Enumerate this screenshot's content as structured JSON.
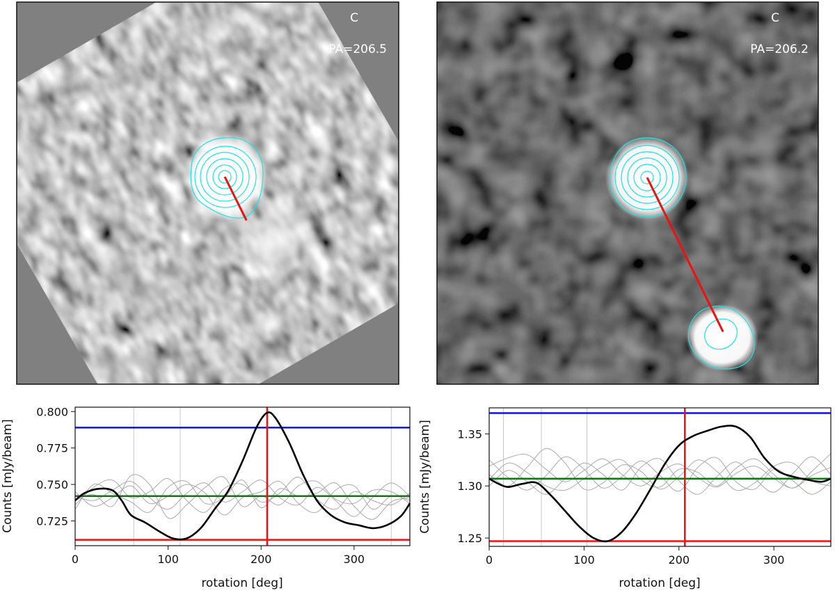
{
  "chart_data": [
    {
      "type": "image",
      "id": "img-left",
      "panel_letter": "C",
      "pa_label": "PA=206.5",
      "position_angle_deg": 206.5
    },
    {
      "type": "image",
      "id": "img-right",
      "panel_letter": "C",
      "pa_label": "PA=206.2",
      "position_angle_deg": 206.2
    },
    {
      "type": "line",
      "id": "profile-left",
      "xlabel": "rotation [deg]",
      "ylabel": "Counts [mJy/beam]",
      "xlim": [
        0,
        360
      ],
      "ylim": [
        0.708,
        0.803
      ],
      "xticks": [
        0,
        100,
        200,
        300
      ],
      "xtick_labels": [
        "0",
        "100",
        "200",
        "300"
      ],
      "yticks": [
        0.725,
        0.75,
        0.775,
        0.8
      ],
      "ytick_labels": [
        "0.725",
        "0.750",
        "0.775",
        "0.800"
      ],
      "vlines_gray": [
        63,
        113,
        340
      ],
      "hline_blue": 0.789,
      "hline_green": 0.742,
      "hline_red": 0.712,
      "vline_red": 206.5,
      "series": [
        {
          "name": "profile",
          "color": "#000000",
          "x": [
            0,
            10,
            25,
            40,
            50,
            60,
            75,
            90,
            105,
            120,
            135,
            150,
            165,
            180,
            195,
            206,
            215,
            230,
            245,
            260,
            275,
            290,
            305,
            320,
            335,
            350,
            360
          ],
          "y": [
            0.739,
            0.744,
            0.747,
            0.746,
            0.739,
            0.729,
            0.724,
            0.718,
            0.713,
            0.713,
            0.72,
            0.733,
            0.746,
            0.766,
            0.789,
            0.799,
            0.796,
            0.779,
            0.757,
            0.739,
            0.729,
            0.724,
            0.722,
            0.72,
            0.722,
            0.728,
            0.737
          ]
        },
        {
          "name": "null-1",
          "color": "#aaaaaa",
          "x": [
            0,
            20,
            40,
            60,
            80,
            100,
            120,
            140,
            160,
            180,
            200,
            220,
            240,
            260,
            280,
            300,
            320,
            340,
            360
          ],
          "y": [
            0.742,
            0.739,
            0.746,
            0.752,
            0.741,
            0.733,
            0.744,
            0.751,
            0.738,
            0.745,
            0.753,
            0.741,
            0.736,
            0.748,
            0.739,
            0.728,
            0.741,
            0.751,
            0.742
          ]
        },
        {
          "name": "null-2",
          "color": "#aaaaaa",
          "x": [
            0,
            20,
            40,
            60,
            80,
            100,
            120,
            140,
            160,
            180,
            200,
            220,
            240,
            260,
            280,
            300,
            320,
            340,
            360
          ],
          "y": [
            0.736,
            0.748,
            0.753,
            0.741,
            0.745,
            0.754,
            0.739,
            0.731,
            0.747,
            0.75,
            0.738,
            0.744,
            0.755,
            0.74,
            0.733,
            0.745,
            0.739,
            0.736,
            0.744
          ]
        },
        {
          "name": "null-3",
          "color": "#aaaaaa",
          "x": [
            0,
            20,
            40,
            60,
            80,
            100,
            120,
            140,
            160,
            180,
            200,
            220,
            240,
            260,
            280,
            300,
            320,
            340,
            360
          ],
          "y": [
            0.745,
            0.735,
            0.741,
            0.749,
            0.737,
            0.742,
            0.75,
            0.744,
            0.729,
            0.741,
            0.745,
            0.752,
            0.737,
            0.731,
            0.746,
            0.749,
            0.733,
            0.742,
            0.739
          ]
        },
        {
          "name": "null-4",
          "color": "#aaaaaa",
          "x": [
            0,
            20,
            40,
            60,
            80,
            100,
            120,
            140,
            160,
            180,
            200,
            220,
            240,
            260,
            280,
            300,
            320,
            340,
            360
          ],
          "y": [
            0.739,
            0.743,
            0.735,
            0.756,
            0.75,
            0.727,
            0.736,
            0.748,
            0.755,
            0.735,
            0.742,
            0.736,
            0.749,
            0.752,
            0.74,
            0.737,
            0.746,
            0.745,
            0.737
          ]
        },
        {
          "name": "null-5",
          "color": "#aaaaaa",
          "x": [
            0,
            20,
            40,
            60,
            80,
            100,
            120,
            140,
            160,
            180,
            200,
            220,
            240,
            260,
            280,
            300,
            320,
            340,
            360
          ],
          "y": [
            0.733,
            0.75,
            0.744,
            0.738,
            0.731,
            0.748,
            0.752,
            0.737,
            0.741,
            0.753,
            0.734,
            0.747,
            0.742,
            0.744,
            0.751,
            0.735,
            0.726,
            0.738,
            0.741
          ]
        }
      ]
    },
    {
      "type": "line",
      "id": "profile-right",
      "xlabel": "rotation [deg]",
      "ylabel": "Counts [mJy/beam]",
      "xlim": [
        0,
        360
      ],
      "ylim": [
        1.242,
        1.375
      ],
      "xticks": [
        0,
        100,
        200,
        300
      ],
      "xtick_labels": [
        "0",
        "100",
        "200",
        "300"
      ],
      "yticks": [
        1.25,
        1.3,
        1.35
      ],
      "ytick_labels": [
        "1.25",
        "1.30",
        "1.35"
      ],
      "vlines_gray": [
        15,
        55,
        103
      ],
      "hline_blue": 1.37,
      "hline_green": 1.307,
      "hline_red": 1.247,
      "vline_red": 206.2,
      "series": [
        {
          "name": "profile",
          "color": "#000000",
          "x": [
            0,
            10,
            20,
            35,
            50,
            65,
            80,
            95,
            110,
            125,
            140,
            155,
            170,
            185,
            200,
            215,
            230,
            245,
            260,
            275,
            290,
            305,
            320,
            335,
            350,
            360
          ],
          "y": [
            1.307,
            1.302,
            1.299,
            1.302,
            1.303,
            1.291,
            1.276,
            1.261,
            1.25,
            1.247,
            1.256,
            1.274,
            1.297,
            1.321,
            1.339,
            1.348,
            1.353,
            1.357,
            1.357,
            1.347,
            1.327,
            1.314,
            1.309,
            1.306,
            1.304,
            1.307
          ]
        },
        {
          "name": "null-1",
          "color": "#aaaaaa",
          "x": [
            0,
            20,
            40,
            60,
            80,
            100,
            120,
            140,
            160,
            180,
            200,
            220,
            240,
            260,
            280,
            300,
            320,
            340,
            360
          ],
          "y": [
            1.319,
            1.327,
            1.33,
            1.316,
            1.304,
            1.315,
            1.326,
            1.311,
            1.3,
            1.313,
            1.321,
            1.308,
            1.299,
            1.312,
            1.319,
            1.307,
            1.298,
            1.31,
            1.318
          ]
        },
        {
          "name": "null-2",
          "color": "#aaaaaa",
          "x": [
            0,
            20,
            40,
            60,
            80,
            100,
            120,
            140,
            160,
            180,
            200,
            220,
            240,
            260,
            280,
            300,
            320,
            340,
            360
          ],
          "y": [
            1.311,
            1.3,
            1.318,
            1.336,
            1.322,
            1.297,
            1.303,
            1.32,
            1.314,
            1.297,
            1.309,
            1.325,
            1.314,
            1.296,
            1.303,
            1.319,
            1.322,
            1.305,
            1.3
          ]
        },
        {
          "name": "null-3",
          "color": "#aaaaaa",
          "x": [
            0,
            20,
            40,
            60,
            80,
            100,
            120,
            140,
            160,
            180,
            200,
            220,
            240,
            260,
            280,
            300,
            320,
            340,
            360
          ],
          "y": [
            1.3,
            1.315,
            1.304,
            1.292,
            1.307,
            1.322,
            1.311,
            1.296,
            1.318,
            1.326,
            1.305,
            1.292,
            1.309,
            1.323,
            1.307,
            1.294,
            1.312,
            1.328,
            1.311
          ]
        },
        {
          "name": "null-4",
          "color": "#aaaaaa",
          "x": [
            0,
            20,
            40,
            60,
            80,
            100,
            120,
            140,
            160,
            180,
            200,
            220,
            240,
            260,
            280,
            300,
            320,
            340,
            360
          ],
          "y": [
            1.325,
            1.308,
            1.296,
            1.31,
            1.328,
            1.316,
            1.298,
            1.309,
            1.324,
            1.31,
            1.295,
            1.318,
            1.327,
            1.304,
            1.297,
            1.316,
            1.305,
            1.292,
            1.304
          ]
        },
        {
          "name": "null-5",
          "color": "#aaaaaa",
          "x": [
            0,
            20,
            40,
            60,
            80,
            100,
            120,
            140,
            160,
            180,
            200,
            220,
            240,
            260,
            280,
            300,
            320,
            340,
            360
          ],
          "y": [
            1.306,
            1.322,
            1.313,
            1.3,
            1.296,
            1.307,
            1.319,
            1.325,
            1.306,
            1.299,
            1.316,
            1.313,
            1.3,
            1.317,
            1.326,
            1.311,
            1.298,
            1.314,
            1.331
          ]
        }
      ]
    }
  ]
}
